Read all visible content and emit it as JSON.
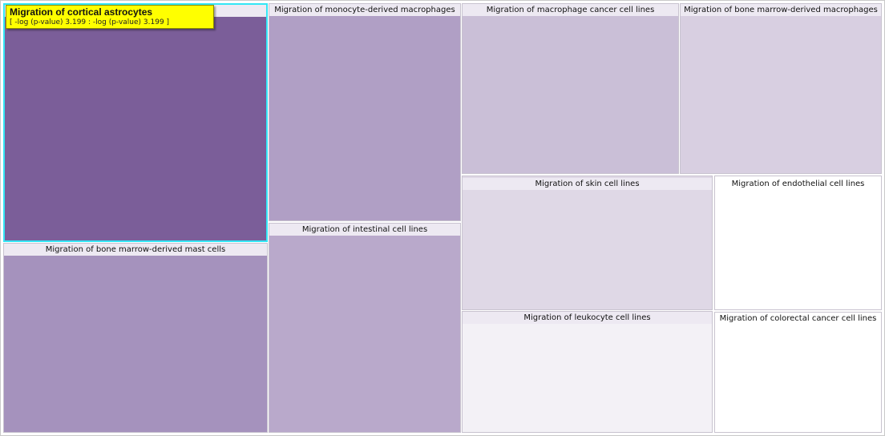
{
  "chart_data": {
    "type": "treemap",
    "value_label": "-log (p-value)",
    "items": [
      {
        "label": "Migration of cortical astrocytes",
        "value": 3.199,
        "color": "#7b5e99"
      },
      {
        "label": "Migration of bone marrow-derived mast cells",
        "color": "#a592bd"
      },
      {
        "label": "Migration of monocyte-derived macrophages",
        "color": "#b09fc5"
      },
      {
        "label": "Migration of intestinal cell lines",
        "color": "#b9a9cb"
      },
      {
        "label": "Migration of macrophage cancer cell lines",
        "color": "#cabfd7"
      },
      {
        "label": "Migration of bone marrow-derived macrophages",
        "color": "#d8cfe1"
      },
      {
        "label": "Migration of skin cell lines",
        "color": "#dfd8e6"
      },
      {
        "label": "Migration of endothelial cell lines",
        "color": "#ffffff"
      },
      {
        "label": "Migration of leukocyte cell lines",
        "color": "#f3f1f6"
      },
      {
        "label": "Migration of colorectal cancer cell lines",
        "color": "#ffffff"
      }
    ]
  },
  "tooltip": {
    "title": "Migration of cortical astrocytes",
    "range_text": "[ -log (p-value) 3.199 : -log (p-value) 3.199 ]"
  },
  "colors": {
    "selection_border": "#33e6f5",
    "tooltip_background": "#ffff00",
    "label_strip": "#ede9f2"
  }
}
